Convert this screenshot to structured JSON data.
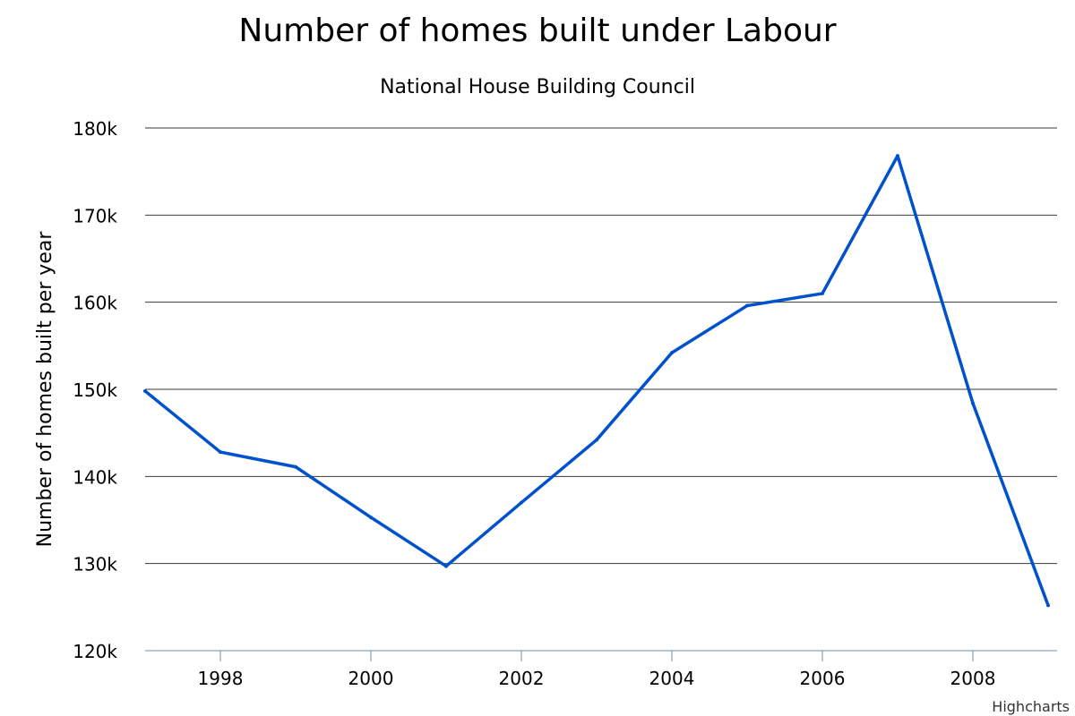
{
  "chart_data": {
    "type": "line",
    "title": "Number of homes built under Labour",
    "subtitle": "National House Building Council",
    "xlabel": "",
    "ylabel": "Number of homes built per year",
    "x": [
      1997,
      1998,
      1999,
      2000,
      2001,
      2002,
      2003,
      2004,
      2005,
      2006,
      2007,
      2008,
      2009
    ],
    "series": [
      {
        "name": "",
        "values": [
          149800,
          142800,
          141100,
          135300,
          129700,
          137000,
          144200,
          154200,
          159600,
          161000,
          176800,
          148400,
          125200
        ]
      }
    ],
    "xlim": [
      1997,
      2009
    ],
    "ylim": [
      120000,
      180000
    ],
    "x_ticks": [
      1998,
      2000,
      2002,
      2004,
      2006,
      2008
    ],
    "x_tick_labels": [
      "1998",
      "2000",
      "2002",
      "2004",
      "2006",
      "2008"
    ],
    "y_ticks": [
      120000,
      130000,
      140000,
      150000,
      160000,
      170000,
      180000
    ],
    "y_tick_labels": [
      "120k",
      "130k",
      "140k",
      "150k",
      "160k",
      "170k",
      "180k"
    ],
    "grid": true,
    "legend": "none",
    "line_color": "#0052CC"
  },
  "credits": "Highcharts"
}
